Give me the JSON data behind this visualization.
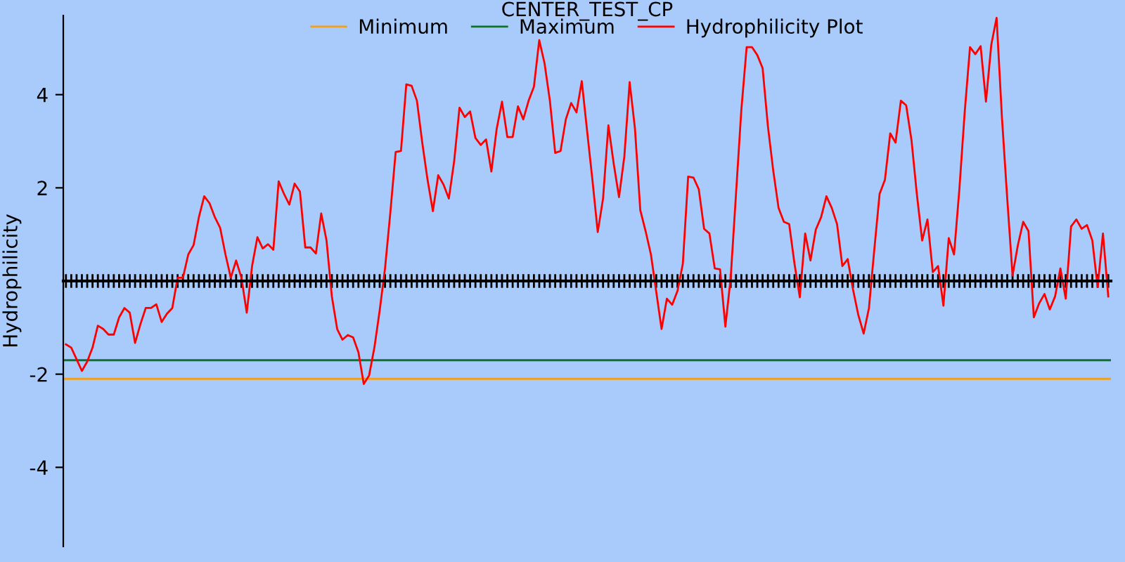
{
  "chart_data": {
    "type": "line",
    "title": "CENTER_TEST_CP",
    "ylabel": "Hydrophilicity",
    "ylim": [
      -5.7,
      5.7
    ],
    "yticks": [
      -4,
      -2,
      2,
      4
    ],
    "categories": [
      null,
      null,
      null,
      null,
      null,
      null,
      null,
      null,
      null,
      null,
      null,
      null,
      null,
      null,
      null,
      null,
      null,
      null,
      null,
      null,
      null,
      null,
      null,
      null,
      null,
      null,
      null,
      null,
      null,
      null,
      null,
      null,
      null,
      null,
      null,
      null,
      null,
      null,
      null,
      null,
      null,
      null,
      null,
      null,
      null,
      null,
      null,
      null,
      null,
      null,
      null,
      null,
      null,
      null,
      null,
      null,
      null,
      null,
      null,
      null,
      null,
      null,
      null,
      null,
      null,
      null,
      null,
      null,
      null,
      null,
      null,
      null,
      null,
      null,
      null,
      null,
      null,
      null,
      null,
      null,
      null,
      null,
      null,
      null,
      null,
      null,
      null,
      null,
      null,
      null,
      null,
      null,
      null,
      null,
      null,
      null,
      null,
      null,
      null,
      null,
      null,
      null,
      null,
      null,
      null,
      null,
      null,
      null,
      null,
      null,
      null,
      null,
      null,
      null,
      null,
      null,
      null,
      null,
      null,
      null,
      null,
      null,
      null,
      null,
      null,
      null,
      null,
      null,
      null,
      null,
      null,
      null,
      null,
      null,
      null,
      null,
      null,
      null,
      null,
      null,
      null,
      null,
      null,
      null,
      null,
      null,
      null,
      null,
      null,
      null,
      null,
      null,
      null,
      null,
      null,
      null,
      null,
      null,
      null,
      null,
      null,
      null,
      null,
      null,
      null,
      null,
      null,
      null,
      null,
      null,
      null,
      null,
      null,
      null,
      null,
      null,
      null,
      null,
      null,
      null,
      null,
      null,
      null,
      null,
      null,
      null,
      null,
      null,
      null,
      null,
      null,
      null,
      null,
      null,
      null,
      null,
      null
    ],
    "legend": "top",
    "tick_labels": "y",
    "ref_lines": [
      {
        "axis": "y",
        "value": -2.1,
        "label": "Minimum",
        "color": "#f0a020"
      },
      {
        "axis": "y",
        "value": -1.7,
        "label": "Maximum",
        "color": "#107030"
      }
    ],
    "series": [
      {
        "name": "Hydrophilicity Plot",
        "color": "#ff0000",
        "values": [
          -1.36,
          -1.43,
          -1.68,
          -1.93,
          -1.73,
          -1.43,
          -0.96,
          -1.03,
          -1.15,
          -1.15,
          -0.78,
          -0.58,
          -0.68,
          -1.33,
          -0.93,
          -0.58,
          -0.58,
          -0.5,
          -0.88,
          -0.7,
          -0.58,
          0.07,
          0.07,
          0.57,
          0.77,
          1.37,
          1.82,
          1.67,
          1.37,
          1.14,
          0.57,
          0.07,
          0.44,
          0.07,
          -0.68,
          0.32,
          0.94,
          0.7,
          0.79,
          0.67,
          2.14,
          1.87,
          1.64,
          2.09,
          1.92,
          0.72,
          0.72,
          0.59,
          1.45,
          0.87,
          -0.33,
          -1.03,
          -1.26,
          -1.16,
          -1.21,
          -1.53,
          -2.21,
          -2.03,
          -1.43,
          -0.63,
          0.27,
          1.47,
          2.77,
          2.79,
          4.22,
          4.19,
          3.87,
          2.97,
          2.17,
          1.5,
          2.27,
          2.07,
          1.77,
          2.57,
          3.72,
          3.52,
          3.64,
          3.07,
          2.92,
          3.04,
          2.35,
          3.27,
          3.85,
          3.09,
          3.09,
          3.75,
          3.47,
          3.87,
          4.17,
          5.17,
          4.67,
          3.87,
          2.75,
          2.79,
          3.47,
          3.82,
          3.62,
          4.29,
          3.22,
          2.17,
          1.05,
          1.77,
          3.34,
          2.52,
          1.8,
          2.67,
          4.27,
          3.27,
          1.52,
          1.07,
          0.57,
          -0.23,
          -1.03,
          -0.38,
          -0.51,
          -0.21,
          0.37,
          2.24,
          2.22,
          1.97,
          1.12,
          1.02,
          0.27,
          0.25,
          -0.98,
          0.07,
          1.87,
          3.67,
          5.02,
          5.02,
          4.85,
          4.57,
          3.32,
          2.37,
          1.57,
          1.27,
          1.22,
          0.37,
          -0.35,
          1.02,
          0.44,
          1.1,
          1.37,
          1.82,
          1.57,
          1.22,
          0.32,
          0.47,
          -0.18,
          -0.73,
          -1.13,
          -0.58,
          0.67,
          1.87,
          2.17,
          3.17,
          2.97,
          3.87,
          3.77,
          3.02,
          1.87,
          0.87,
          1.32,
          0.19,
          0.32,
          -0.53,
          0.92,
          0.57,
          1.97,
          3.62,
          5.02,
          4.87,
          5.04,
          3.85,
          5.07,
          5.65,
          3.52,
          1.77,
          0.12,
          0.77,
          1.27,
          1.07,
          -0.78,
          -0.48,
          -0.28,
          -0.61,
          -0.33,
          0.27,
          -0.38,
          1.17,
          1.32,
          1.12,
          1.2,
          0.87,
          -0.13,
          1.02,
          -0.33
        ]
      }
    ]
  }
}
